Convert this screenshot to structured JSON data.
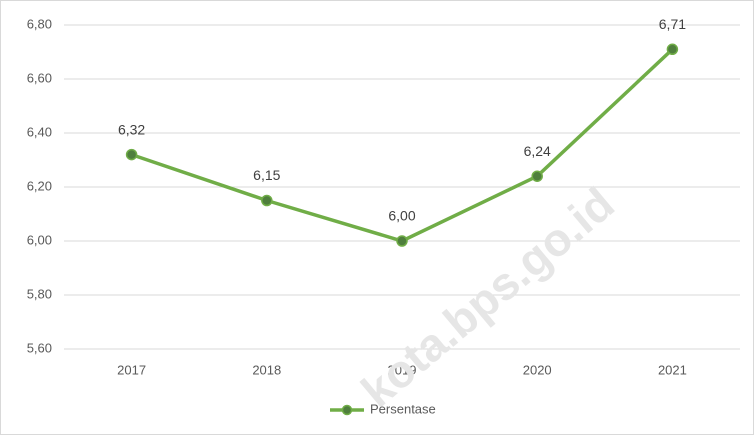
{
  "chart_data": {
    "type": "line",
    "categories": [
      "2017",
      "2018",
      "2019",
      "2020",
      "2021"
    ],
    "series": [
      {
        "name": "Persentase",
        "color": "#70ad47",
        "marker_color": "#4f7f3d",
        "values": [
          6.32,
          6.15,
          6.0,
          6.24,
          6.71
        ],
        "value_labels": [
          "6,32",
          "6,15",
          "6,00",
          "6,24",
          "6,71"
        ]
      }
    ],
    "ylim": [
      5.6,
      6.8
    ],
    "yticks": [
      {
        "value": 5.6,
        "label": "5,60"
      },
      {
        "value": 5.8,
        "label": "5,80"
      },
      {
        "value": 6.0,
        "label": "6,00"
      },
      {
        "value": 6.2,
        "label": "6,20"
      },
      {
        "value": 6.4,
        "label": "6,40"
      },
      {
        "value": 6.6,
        "label": "6,60"
      },
      {
        "value": 6.8,
        "label": "6,80"
      }
    ],
    "grid": true,
    "legend": "bottom",
    "watermark": "kota.bps.go.id"
  }
}
